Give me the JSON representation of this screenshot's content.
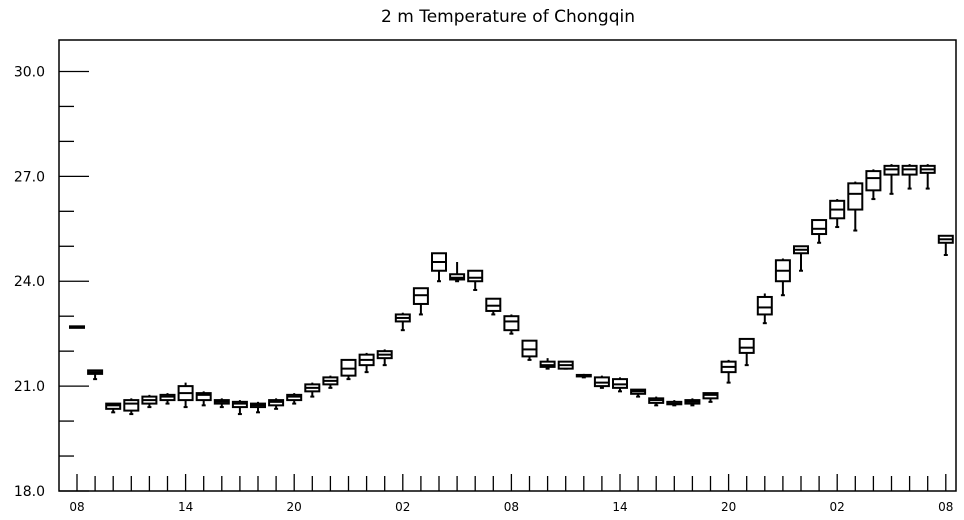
{
  "chart_data": {
    "type": "box",
    "title": "2 m Temperature of Chongqin",
    "xlabel": "",
    "ylabel": "",
    "ylim": [
      18.0,
      30.9
    ],
    "y_major_ticks": [
      18.0,
      21.0,
      24.0,
      27.0,
      30.0
    ],
    "y_major_tick_labels": [
      "18.0",
      "21.0",
      "24.0",
      "27.0",
      "30.0"
    ],
    "y_minor_step": 1.0,
    "x_tick_labels": [
      "08",
      "14",
      "20",
      "02",
      "08",
      "14",
      "20",
      "02",
      "08"
    ],
    "x_tick_label_steps": [
      0,
      6,
      12,
      18,
      24,
      30,
      36,
      42,
      48
    ],
    "x_step_hours": 1,
    "grid": false,
    "boxes": [
      {
        "step": 0,
        "min": 22.68,
        "q1": 22.68,
        "median": 22.7,
        "q3": 22.71,
        "max": 22.72
      },
      {
        "step": 1,
        "min": 21.2,
        "q1": 21.35,
        "median": 21.4,
        "q3": 21.45,
        "max": 21.45
      },
      {
        "step": 2,
        "min": 20.25,
        "q1": 20.35,
        "median": 20.45,
        "q3": 20.5,
        "max": 20.5
      },
      {
        "step": 3,
        "min": 20.2,
        "q1": 20.3,
        "median": 20.5,
        "q3": 20.6,
        "max": 20.65
      },
      {
        "step": 4,
        "min": 20.4,
        "q1": 20.5,
        "median": 20.6,
        "q3": 20.7,
        "max": 20.75
      },
      {
        "step": 5,
        "min": 20.5,
        "q1": 20.6,
        "median": 20.7,
        "q3": 20.75,
        "max": 20.8
      },
      {
        "step": 6,
        "min": 20.4,
        "q1": 20.6,
        "median": 20.8,
        "q3": 21.0,
        "max": 21.1
      },
      {
        "step": 7,
        "min": 20.45,
        "q1": 20.6,
        "median": 20.75,
        "q3": 20.8,
        "max": 20.85
      },
      {
        "step": 8,
        "min": 20.4,
        "q1": 20.5,
        "median": 20.55,
        "q3": 20.6,
        "max": 20.65
      },
      {
        "step": 9,
        "min": 20.2,
        "q1": 20.4,
        "median": 20.5,
        "q3": 20.55,
        "max": 20.6
      },
      {
        "step": 10,
        "min": 20.25,
        "q1": 20.4,
        "median": 20.45,
        "q3": 20.5,
        "max": 20.55
      },
      {
        "step": 11,
        "min": 20.35,
        "q1": 20.45,
        "median": 20.55,
        "q3": 20.6,
        "max": 20.65
      },
      {
        "step": 12,
        "min": 20.5,
        "q1": 20.6,
        "median": 20.7,
        "q3": 20.75,
        "max": 20.8
      },
      {
        "step": 13,
        "min": 20.7,
        "q1": 20.85,
        "median": 20.95,
        "q3": 21.05,
        "max": 21.1
      },
      {
        "step": 14,
        "min": 20.95,
        "q1": 21.05,
        "median": 21.15,
        "q3": 21.25,
        "max": 21.3
      },
      {
        "step": 15,
        "min": 21.2,
        "q1": 21.3,
        "median": 21.5,
        "q3": 21.75,
        "max": 21.75
      },
      {
        "step": 16,
        "min": 21.4,
        "q1": 21.6,
        "median": 21.75,
        "q3": 21.9,
        "max": 21.95
      },
      {
        "step": 17,
        "min": 21.6,
        "q1": 21.8,
        "median": 21.9,
        "q3": 22.0,
        "max": 22.05
      },
      {
        "step": 18,
        "min": 22.6,
        "q1": 22.85,
        "median": 22.95,
        "q3": 23.05,
        "max": 23.1
      },
      {
        "step": 19,
        "min": 23.05,
        "q1": 23.35,
        "median": 23.6,
        "q3": 23.8,
        "max": 23.8
      },
      {
        "step": 20,
        "min": 24.0,
        "q1": 24.3,
        "median": 24.55,
        "q3": 24.8,
        "max": 24.8
      },
      {
        "step": 21,
        "min": 24.0,
        "q1": 24.05,
        "median": 24.1,
        "q3": 24.2,
        "max": 24.55
      },
      {
        "step": 22,
        "min": 23.75,
        "q1": 24.0,
        "median": 24.1,
        "q3": 24.3,
        "max": 24.3
      },
      {
        "step": 23,
        "min": 23.05,
        "q1": 23.15,
        "median": 23.3,
        "q3": 23.5,
        "max": 23.5
      },
      {
        "step": 24,
        "min": 22.5,
        "q1": 22.6,
        "median": 22.85,
        "q3": 23.0,
        "max": 23.05
      },
      {
        "step": 25,
        "min": 21.75,
        "q1": 21.85,
        "median": 22.05,
        "q3": 22.3,
        "max": 22.3
      },
      {
        "step": 26,
        "min": 21.5,
        "q1": 21.55,
        "median": 21.6,
        "q3": 21.7,
        "max": 21.8
      },
      {
        "step": 27,
        "min": 21.5,
        "q1": 21.5,
        "median": 21.6,
        "q3": 21.7,
        "max": 21.7
      },
      {
        "step": 28,
        "min": 21.25,
        "q1": 21.28,
        "median": 21.3,
        "q3": 21.32,
        "max": 21.35
      },
      {
        "step": 29,
        "min": 20.95,
        "q1": 21.0,
        "median": 21.1,
        "q3": 21.25,
        "max": 21.3
      },
      {
        "step": 30,
        "min": 20.85,
        "q1": 20.95,
        "median": 21.05,
        "q3": 21.2,
        "max": 21.25
      },
      {
        "step": 31,
        "min": 20.7,
        "q1": 20.78,
        "median": 20.85,
        "q3": 20.9,
        "max": 20.9
      },
      {
        "step": 32,
        "min": 20.45,
        "q1": 20.52,
        "median": 20.6,
        "q3": 20.65,
        "max": 20.7
      },
      {
        "step": 33,
        "min": 20.45,
        "q1": 20.48,
        "median": 20.5,
        "q3": 20.55,
        "max": 20.6
      },
      {
        "step": 34,
        "min": 20.45,
        "q1": 20.5,
        "median": 20.55,
        "q3": 20.6,
        "max": 20.65
      },
      {
        "step": 35,
        "min": 20.55,
        "q1": 20.65,
        "median": 20.75,
        "q3": 20.8,
        "max": 20.8
      },
      {
        "step": 36,
        "min": 21.1,
        "q1": 21.4,
        "median": 21.55,
        "q3": 21.7,
        "max": 21.75
      },
      {
        "step": 37,
        "min": 21.6,
        "q1": 21.95,
        "median": 22.1,
        "q3": 22.35,
        "max": 22.35
      },
      {
        "step": 38,
        "min": 22.8,
        "q1": 23.05,
        "median": 23.25,
        "q3": 23.55,
        "max": 23.65
      },
      {
        "step": 39,
        "min": 23.6,
        "q1": 24.0,
        "median": 24.3,
        "q3": 24.6,
        "max": 24.65
      },
      {
        "step": 40,
        "min": 24.3,
        "q1": 24.8,
        "median": 24.9,
        "q3": 25.0,
        "max": 25.0
      },
      {
        "step": 41,
        "min": 25.1,
        "q1": 25.35,
        "median": 25.5,
        "q3": 25.75,
        "max": 25.75
      },
      {
        "step": 42,
        "min": 25.55,
        "q1": 25.8,
        "median": 26.05,
        "q3": 26.3,
        "max": 26.35
      },
      {
        "step": 43,
        "min": 25.45,
        "q1": 26.05,
        "median": 26.5,
        "q3": 26.8,
        "max": 26.85
      },
      {
        "step": 44,
        "min": 26.35,
        "q1": 26.6,
        "median": 26.95,
        "q3": 27.15,
        "max": 27.2
      },
      {
        "step": 45,
        "min": 26.5,
        "q1": 27.05,
        "median": 27.2,
        "q3": 27.3,
        "max": 27.35
      },
      {
        "step": 46,
        "min": 26.65,
        "q1": 27.05,
        "median": 27.2,
        "q3": 27.3,
        "max": 27.35
      },
      {
        "step": 47,
        "min": 26.65,
        "q1": 27.1,
        "median": 27.2,
        "q3": 27.3,
        "max": 27.35
      },
      {
        "step": 48,
        "min": 24.75,
        "q1": 25.1,
        "median": 25.2,
        "q3": 25.3,
        "max": 25.3
      }
    ]
  }
}
